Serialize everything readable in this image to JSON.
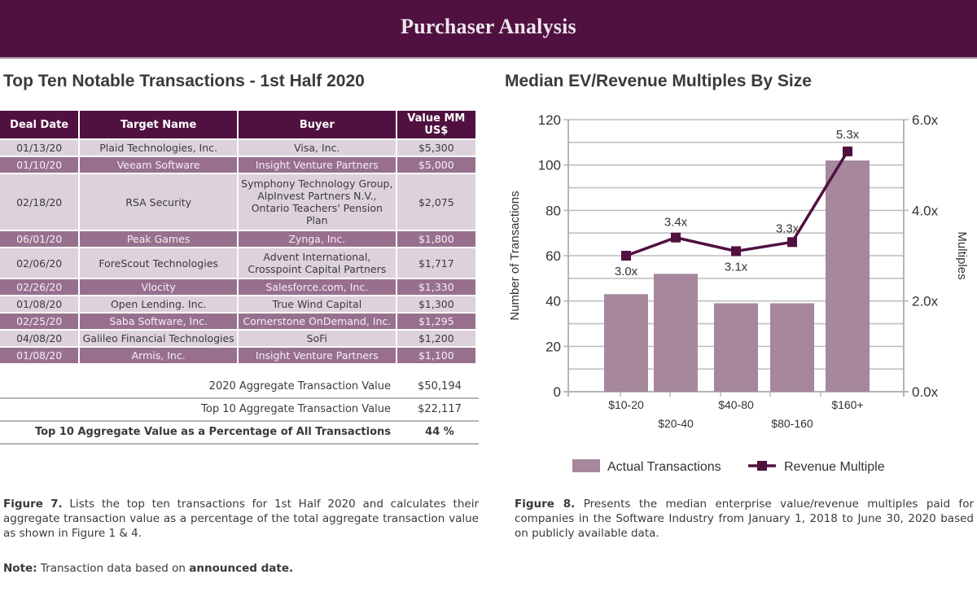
{
  "banner": {
    "title": "Purchaser Analysis"
  },
  "left_section": {
    "title": "Top Ten Notable Transactions - 1st Half 2020",
    "table": {
      "headers": [
        "Deal Date",
        "Target Name",
        "Buyer",
        "Value MM US$"
      ],
      "rows": [
        {
          "date": "01/13/20",
          "target": "Plaid Technologies, Inc.",
          "buyer": "Visa, Inc.",
          "value": "$5,300"
        },
        {
          "date": "01/10/20",
          "target": "Veeam Software",
          "buyer": "Insight Venture Partners",
          "value": "$5,000"
        },
        {
          "date": "02/18/20",
          "target": "RSA Security",
          "buyer": "Symphony Technology Group, AlpInvest Partners N.V., Ontario Teachers' Pension Plan",
          "value": "$2,075"
        },
        {
          "date": "06/01/20",
          "target": "Peak Games",
          "buyer": "Zynga, Inc.",
          "value": "$1,800"
        },
        {
          "date": "02/06/20",
          "target": "ForeScout Technologies",
          "buyer": "Advent International, Crosspoint Capital Partners",
          "value": "$1,717"
        },
        {
          "date": "02/26/20",
          "target": "Vlocity",
          "buyer": "Salesforce.com, Inc.",
          "value": "$1,330"
        },
        {
          "date": "01/08/20",
          "target": "Open Lending. Inc.",
          "buyer": "True Wind Capital",
          "value": "$1,300"
        },
        {
          "date": "02/25/20",
          "target": "Saba Software, Inc.",
          "buyer": "Cornerstone OnDemand, Inc.",
          "value": "$1,295"
        },
        {
          "date": "04/08/20",
          "target": "Galileo Financial Technologies",
          "buyer": "SoFi",
          "value": "$1,200"
        },
        {
          "date": "01/08/20",
          "target": "Armis, Inc.",
          "buyer": "Insight Venture Partners",
          "value": "$1,100"
        }
      ]
    },
    "summary": [
      {
        "label": "2020 Aggregate Transaction Value",
        "value": "$50,194"
      },
      {
        "label": "Top 10 Aggregate Transaction Value",
        "value": "$22,117"
      },
      {
        "label": "Top 10 Aggregate Value as a Percentage of All Transactions",
        "value": "44 %"
      }
    ],
    "caption": {
      "lead": "Figure 7.",
      "text": " Lists the top ten transactions for 1st Half 2020 and calculates their aggregate transaction value as a percentage of the total aggregate transaction value as shown in Figure 1 & 4."
    },
    "note": {
      "lead": "Note:",
      "text": " Transaction data based on ",
      "emphasis": "announced date."
    }
  },
  "right_section": {
    "title": "Median EV/Revenue Multiples By Size",
    "caption": {
      "lead": "Figure 8.",
      "text": " Presents the median enterprise value/revenue multiples paid for companies in the Software Industry from January 1, 2018 to June 30, 2020 based on publicly available data."
    }
  },
  "chart_data": {
    "type": "bar",
    "title": "Median EV/Revenue Multiples By Size",
    "categories": [
      "$10-20",
      "$20-40",
      "$40-80",
      "$80-160",
      "$160+"
    ],
    "series": [
      {
        "name": "Actual Transactions",
        "type": "bar",
        "axis": "left",
        "values": [
          43,
          52,
          39,
          39,
          102
        ],
        "color": "#a6879c"
      },
      {
        "name": "Revenue Multiple",
        "type": "line",
        "axis": "right",
        "values": [
          3.0,
          3.4,
          3.1,
          3.3,
          5.3
        ],
        "labels": [
          "3.0x",
          "3.4x",
          "3.1x",
          "3.3x",
          "5.3x"
        ],
        "color": "#501140"
      }
    ],
    "ylabel": "Number of Transactions",
    "y2label": "Multiples",
    "ylim": [
      0,
      120
    ],
    "y2lim": [
      0,
      6
    ],
    "yticks": [
      "0",
      "20",
      "40",
      "60",
      "80",
      "100",
      "120"
    ],
    "y2ticks": [
      "0.0x",
      "2.0x",
      "4.0x",
      "6.0x"
    ],
    "grid": true,
    "legend": "bottom-center",
    "legend_entries": [
      "Actual Transactions",
      "Revenue Multiple"
    ]
  }
}
